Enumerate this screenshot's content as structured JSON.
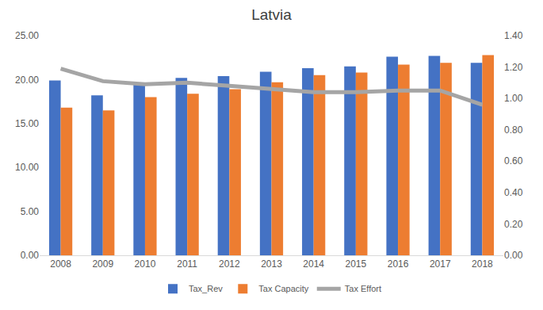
{
  "chart_data": {
    "type": "bar",
    "title": "Latvia",
    "categories": [
      "2008",
      "2009",
      "2010",
      "2011",
      "2012",
      "2013",
      "2014",
      "2015",
      "2016",
      "2017",
      "2018"
    ],
    "series": [
      {
        "name": "Tax_Rev",
        "type": "bar",
        "color": "#4472c4",
        "values": [
          19.9,
          18.2,
          19.6,
          20.2,
          20.4,
          20.9,
          21.3,
          21.5,
          22.6,
          22.7,
          21.9
        ]
      },
      {
        "name": "Tax Capacity",
        "type": "bar",
        "color": "#ed7d31",
        "values": [
          16.8,
          16.5,
          18.0,
          18.4,
          18.9,
          19.7,
          20.5,
          20.8,
          21.7,
          21.9,
          22.8
        ]
      },
      {
        "name": "Tax Effort",
        "type": "line",
        "axis": "y2",
        "color": "#a5a5a5",
        "values": [
          1.19,
          1.11,
          1.09,
          1.1,
          1.08,
          1.06,
          1.04,
          1.04,
          1.05,
          1.05,
          0.96
        ]
      }
    ],
    "ylim": [
      0,
      25
    ],
    "yticks": [
      {
        "value": 0,
        "label": "0.00"
      },
      {
        "value": 5,
        "label": "5.00"
      },
      {
        "value": 10,
        "label": "10.00"
      },
      {
        "value": 15,
        "label": "15.00"
      },
      {
        "value": 20,
        "label": "20.00"
      },
      {
        "value": 25,
        "label": "25.00"
      }
    ],
    "y2lim": [
      0,
      1.4
    ],
    "y2ticks": [
      {
        "value": 0,
        "label": "0.00"
      },
      {
        "value": 0.2,
        "label": "0.20"
      },
      {
        "value": 0.4,
        "label": "0.40"
      },
      {
        "value": 0.6,
        "label": "0.60"
      },
      {
        "value": 0.8,
        "label": "0.80"
      },
      {
        "value": 1.0,
        "label": "1.00"
      },
      {
        "value": 1.2,
        "label": "1.20"
      },
      {
        "value": 1.4,
        "label": "1.40"
      }
    ],
    "grid": false,
    "legend": "bottom"
  }
}
